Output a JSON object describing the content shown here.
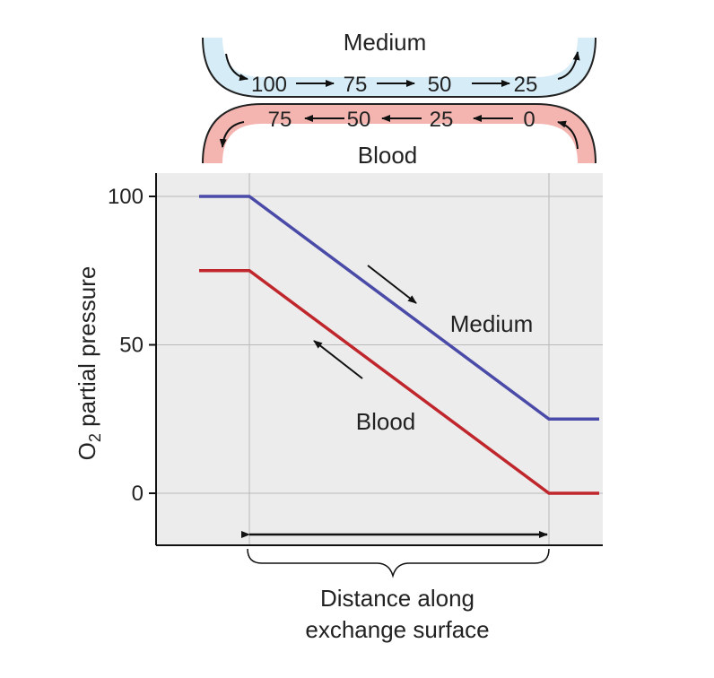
{
  "diagram": {
    "medium_label": "Medium",
    "blood_label": "Blood",
    "medium_flow_values": [
      "100",
      "75",
      "50",
      "25"
    ],
    "blood_flow_values": [
      "75",
      "50",
      "25",
      "0"
    ],
    "medium_color": "#d6ecf7",
    "blood_color": "#f4b4b0"
  },
  "chart_data": {
    "type": "line",
    "ylabel": "O2 partial pressure",
    "ylabel_main": "O",
    "ylabel_sub": "2",
    "ylabel_rest": " partial pressure",
    "yticks": [
      "100",
      "50",
      "0"
    ],
    "ylim": [
      -17,
      110
    ],
    "grid": true,
    "bracket_label_line1": "Distance along",
    "bracket_label_line2": "exchange surface",
    "series": [
      {
        "name": "Medium",
        "color": "#4a4aa8",
        "x": [
          0,
          1,
          7,
          8
        ],
        "y": [
          100,
          100,
          25,
          25
        ]
      },
      {
        "name": "Blood",
        "color": "#c0272d",
        "x": [
          0,
          1,
          7,
          8
        ],
        "y": [
          75,
          75,
          0,
          0
        ]
      }
    ]
  }
}
